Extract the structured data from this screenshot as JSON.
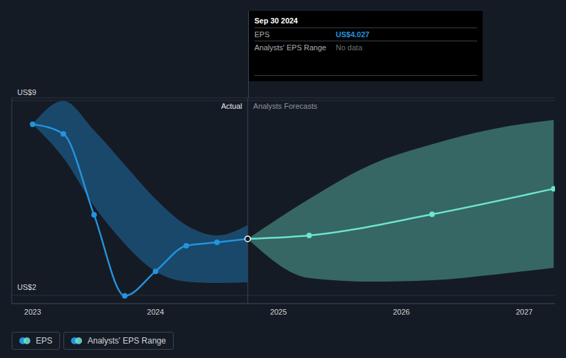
{
  "chart_data": {
    "type": "line",
    "xlim": [
      2022.83,
      2027.25
    ],
    "xticks": [
      2023,
      2024,
      2025,
      2026,
      2027
    ],
    "ylim": [
      1.7,
      9.1
    ],
    "yticks": [
      {
        "value": 2,
        "label": "US$2"
      },
      {
        "value": 9,
        "label": "US$9"
      }
    ],
    "grid": true,
    "legend": "bottom-left",
    "divider": {
      "x": 2024.75,
      "labels": [
        "Actual",
        "Analysts Forecasts"
      ]
    },
    "series": [
      {
        "name": "EPS",
        "type": "line",
        "color": "#2394df",
        "marker": "circle",
        "x": [
          2023,
          2023.25,
          2023.5,
          2023.75,
          2024,
          2024.25,
          2024.5,
          2024.75
        ],
        "values": [
          8.15,
          7.8,
          4.89,
          1.98,
          2.86,
          3.78,
          3.9,
          4.027
        ]
      },
      {
        "name": "EPS",
        "type": "line",
        "color": "#6de6d0",
        "marker": "circle",
        "x": [
          2024.75,
          2025.25,
          2026.25,
          2027.24
        ],
        "values": [
          4.027,
          4.15,
          4.91,
          5.83
        ]
      },
      {
        "name": "Analysts' EPS Range",
        "type": "range",
        "color": "#2394df",
        "x": [
          2023,
          2023.25,
          2023.5,
          2023.75,
          2024,
          2024.25,
          2024.5,
          2024.75
        ],
        "low": [
          8.15,
          6.94,
          5.21,
          3.85,
          2.86,
          2.49,
          2.44,
          2.47
        ],
        "high": [
          8.15,
          8.99,
          7.93,
          6.69,
          5.46,
          4.52,
          4.15,
          4.52
        ]
      },
      {
        "name": "Analysts' EPS Range",
        "type": "range",
        "color": "#6de6d0",
        "x": [
          2024.75,
          2025.25,
          2025.75,
          2026.25,
          2026.75,
          2027.24
        ],
        "low": [
          4.027,
          2.62,
          2.49,
          2.54,
          2.74,
          2.99
        ],
        "high": [
          4.027,
          5.46,
          6.69,
          7.43,
          7.98,
          8.3
        ]
      }
    ],
    "annotation": {
      "title": "Sep 30 2024",
      "x": 2024.75,
      "rows": [
        {
          "label": "EPS",
          "value": 4.027,
          "value_label": "US$4.027"
        },
        {
          "label": "Analysts' EPS Range",
          "value_label": "No data"
        }
      ]
    }
  }
}
